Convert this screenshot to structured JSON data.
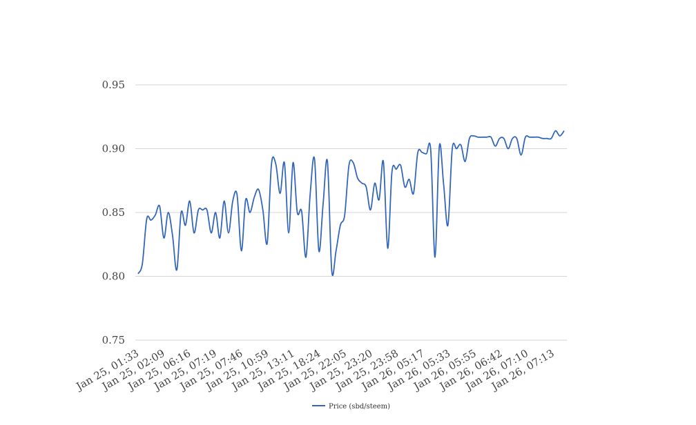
{
  "chart_data": {
    "type": "line",
    "title": "",
    "xlabel": "",
    "ylabel": "",
    "ylim": [
      0.75,
      0.95
    ],
    "yticks": [
      "0.75",
      "0.80",
      "0.85",
      "0.90",
      "0.95"
    ],
    "xtick_labels": [
      "Jan 25, 01:33",
      "Jan 25, 02:09",
      "Jan 25, 06:16",
      "Jan 25, 07:19",
      "Jan 25, 07:46",
      "Jan 25, 10:59",
      "Jan 25, 13:11",
      "Jan 25, 18:24",
      "Jan 25, 22:05",
      "Jan 25, 23:20",
      "Jan 25, 23:58",
      "Jan 26, 05:17",
      "Jan 26, 05:33",
      "Jan 26, 05:55",
      "Jan 26, 06:42",
      "Jan 26, 07:10",
      "Jan 26, 07:13"
    ],
    "grid": true,
    "legend_position": "bottom",
    "series": [
      {
        "name": "Price (sbd/steem)",
        "color": "#3366bb",
        "values": [
          0.802,
          0.81,
          0.845,
          0.844,
          0.848,
          0.855,
          0.83,
          0.85,
          0.832,
          0.805,
          0.85,
          0.84,
          0.859,
          0.834,
          0.852,
          0.852,
          0.852,
          0.834,
          0.85,
          0.83,
          0.859,
          0.834,
          0.859,
          0.864,
          0.82,
          0.86,
          0.85,
          0.862,
          0.868,
          0.852,
          0.826,
          0.888,
          0.888,
          0.865,
          0.889,
          0.834,
          0.889,
          0.85,
          0.851,
          0.815,
          0.865,
          0.892,
          0.82,
          0.857,
          0.89,
          0.804,
          0.82,
          0.84,
          0.848,
          0.887,
          0.889,
          0.877,
          0.873,
          0.87,
          0.852,
          0.873,
          0.86,
          0.89,
          0.822,
          0.882,
          0.884,
          0.887,
          0.87,
          0.876,
          0.865,
          0.897,
          0.897,
          0.896,
          0.899,
          0.815,
          0.902,
          0.872,
          0.84,
          0.9,
          0.9,
          0.903,
          0.89,
          0.908,
          0.91,
          0.909,
          0.909,
          0.909,
          0.909,
          0.902,
          0.908,
          0.908,
          0.9,
          0.908,
          0.908,
          0.895,
          0.909,
          0.909,
          0.909,
          0.909,
          0.908,
          0.908,
          0.908,
          0.914,
          0.91,
          0.914
        ]
      }
    ]
  }
}
